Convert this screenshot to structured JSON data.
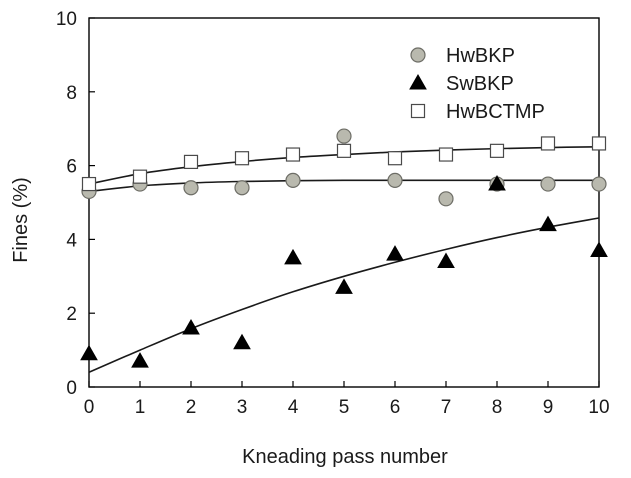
{
  "chart_data": {
    "type": "scatter",
    "title": "",
    "xlabel": "Kneading pass number",
    "ylabel": "Fines (%)",
    "xlim": [
      0,
      10
    ],
    "ylim": [
      0,
      10
    ],
    "xticks": [
      "0",
      "1",
      "2",
      "3",
      "4",
      "5",
      "6",
      "7",
      "8",
      "9",
      "10"
    ],
    "yticks": [
      "0",
      "2",
      "4",
      "6",
      "8",
      "10"
    ],
    "grid": false,
    "legend_position": "top-right",
    "x": [
      0,
      1,
      2,
      3,
      4,
      5,
      6,
      7,
      8,
      9,
      10
    ],
    "series": [
      {
        "name": "HwBKP",
        "marker": "circle",
        "color": "#b9b9ae",
        "values": [
          5.3,
          5.5,
          5.4,
          5.4,
          5.6,
          6.8,
          5.6,
          5.1,
          5.5,
          5.5,
          5.5
        ],
        "trend": [
          5.3,
          5.45,
          5.53,
          5.57,
          5.59,
          5.6,
          5.6,
          5.6,
          5.6,
          5.6,
          5.6
        ]
      },
      {
        "name": "SwBKP",
        "marker": "triangle",
        "color": "#000000",
        "values": [
          0.9,
          0.7,
          1.6,
          1.2,
          3.5,
          2.7,
          3.6,
          3.4,
          5.5,
          4.4,
          3.7
        ],
        "trend": [
          0.4,
          1.0,
          1.58,
          2.1,
          2.58,
          3.0,
          3.38,
          3.73,
          4.05,
          4.33,
          4.58
        ]
      },
      {
        "name": "HwBCTMP",
        "marker": "square",
        "color": "#ffffff",
        "values": [
          5.5,
          5.7,
          6.1,
          6.2,
          6.3,
          6.4,
          6.2,
          6.3,
          6.4,
          6.6,
          6.6
        ],
        "trend": [
          5.5,
          5.78,
          5.97,
          6.11,
          6.22,
          6.3,
          6.37,
          6.42,
          6.46,
          6.49,
          6.51
        ]
      }
    ]
  }
}
